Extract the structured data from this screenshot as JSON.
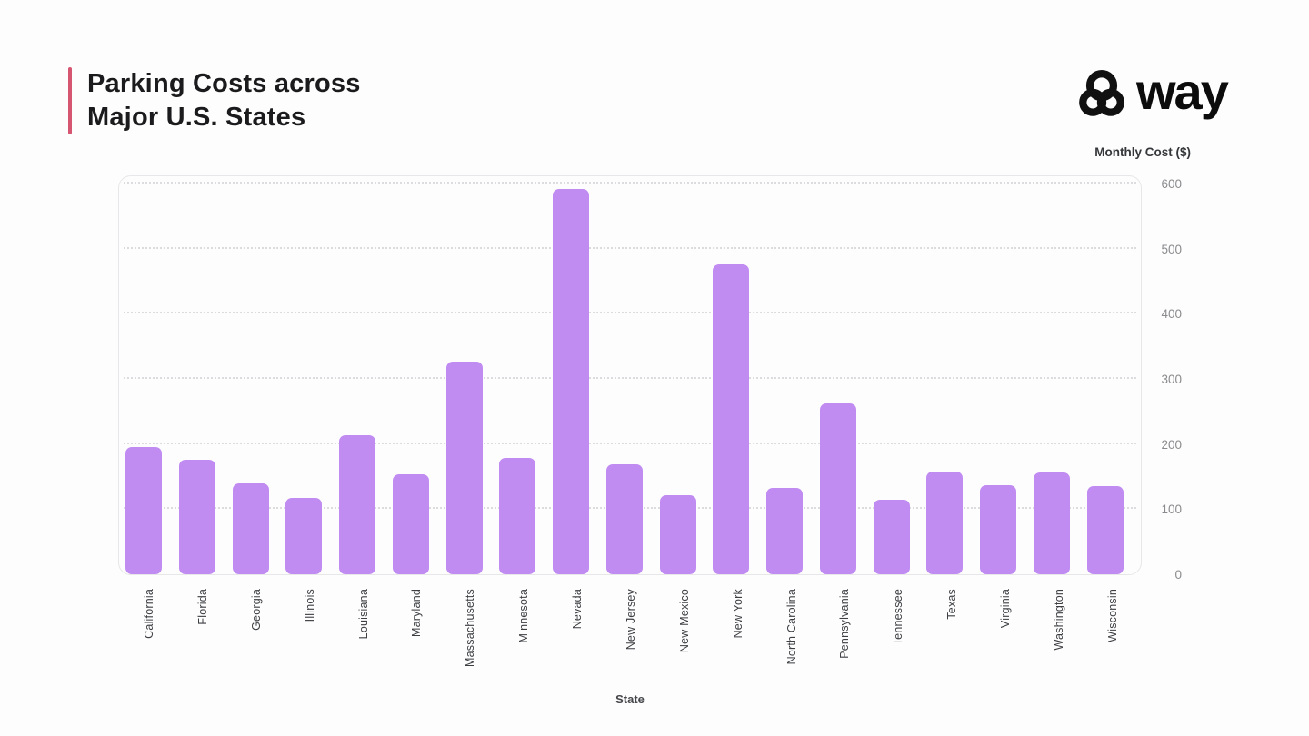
{
  "header": {
    "title_line1": "Parking Costs across",
    "title_line2": "Major U.S. States",
    "accent_color": "#d65570",
    "logo_text": "way"
  },
  "chart_data": {
    "type": "bar",
    "title": "Parking Costs across Major U.S. States",
    "xlabel": "State",
    "ylabel": "Monthly Cost ($)",
    "ylim": [
      0,
      600
    ],
    "yticks": [
      0,
      100,
      200,
      300,
      400,
      500,
      600
    ],
    "categories": [
      "California",
      "Florida",
      "Georgia",
      "Illinois",
      "Louisiana",
      "Maryland",
      "Massachusetts",
      "Minnesota",
      "Nevada",
      "New Jersey",
      "New Mexico",
      "New York",
      "North Carolina",
      "Pennsylvania",
      "Tennessee",
      "Texas",
      "Virginia",
      "Washington",
      "Wisconsin"
    ],
    "values": [
      195,
      176,
      139,
      117,
      213,
      154,
      326,
      178,
      591,
      169,
      121,
      476,
      133,
      262,
      115,
      158,
      137,
      156,
      136
    ],
    "bar_color": "#c18cf2",
    "grid": "dotted-horizontal",
    "ytick_side": "right",
    "legend": "none"
  }
}
